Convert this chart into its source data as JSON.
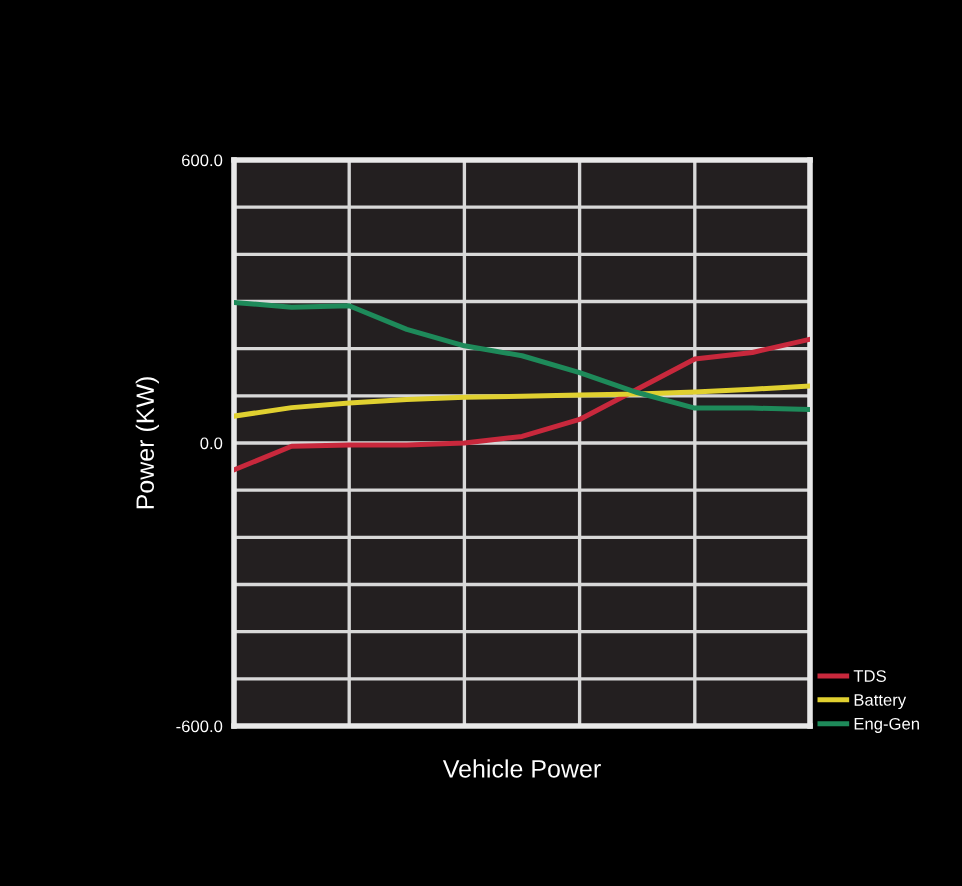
{
  "chart_data": {
    "type": "line",
    "xlabel": "Vehicle Power",
    "ylabel": "Power (KW)",
    "categories": [
      null,
      null,
      null,
      null,
      null,
      null,
      null,
      null,
      null,
      null,
      null
    ],
    "ylim": [
      -600,
      600
    ],
    "yticks": [
      {
        "value": 600,
        "label": "600.0"
      },
      {
        "value": 500,
        "label": null
      },
      {
        "value": 400,
        "label": null
      },
      {
        "value": 300,
        "label": null
      },
      {
        "value": 200,
        "label": null
      },
      {
        "value": 100,
        "label": null
      },
      {
        "value": 0,
        "label": "0.0"
      },
      {
        "value": -100,
        "label": null
      },
      {
        "value": -200,
        "label": null
      },
      {
        "value": -300,
        "label": null
      },
      {
        "value": -400,
        "label": null
      },
      {
        "value": -500,
        "label": null
      },
      {
        "value": -600,
        "label": "-600.0"
      }
    ],
    "grid": true,
    "legend": "bottom right",
    "marker": "none",
    "line_style": "solid",
    "series": [
      {
        "name": "TDS",
        "color": "#c8283c",
        "values": [
          -57,
          -7,
          -4,
          -4,
          0,
          14,
          50,
          114,
          178,
          192,
          220
        ]
      },
      {
        "name": "Battery",
        "color": "#e0d030",
        "values": [
          57,
          75,
          85,
          92,
          97,
          99,
          102,
          104,
          108,
          114,
          121
        ]
      },
      {
        "name": "Eng-Gen",
        "color": "#1e8a5a",
        "values": [
          298,
          288,
          291,
          241,
          206,
          185,
          149,
          107,
          74,
          74,
          71
        ]
      }
    ]
  }
}
